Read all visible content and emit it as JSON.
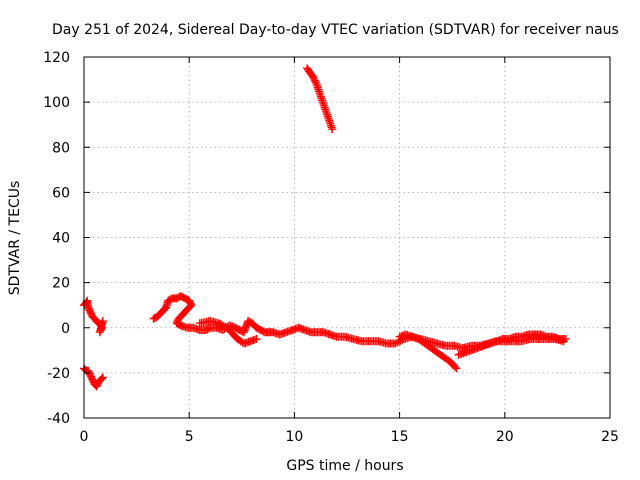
{
  "chart_data": {
    "type": "scatter",
    "title": "Day 251 of 2024, Sidereal Day-to-day VTEC variation (SDTVAR) for receiver naus",
    "xlabel": "GPS time / hours",
    "ylabel": "SDTVAR / TECUs",
    "xlim": [
      0,
      25
    ],
    "ylim": [
      -40,
      120
    ],
    "xticks": [
      0,
      5,
      10,
      15,
      20,
      25
    ],
    "yticks": [
      -40,
      -20,
      0,
      20,
      40,
      60,
      80,
      100,
      120
    ],
    "grid": true,
    "legend": "none",
    "marker": "plus",
    "series": [
      {
        "name": "arc-a",
        "color": "#ff0000",
        "x": [
          0.0,
          0.1,
          0.15,
          0.2,
          0.3,
          0.4,
          0.5,
          0.6,
          0.7,
          0.8,
          0.9,
          0.75,
          0.85
        ],
        "y": [
          10,
          11,
          12,
          9,
          7,
          5,
          4,
          3,
          2,
          1,
          3,
          -2,
          0
        ]
      },
      {
        "name": "arc-b",
        "color": "#ff0000",
        "x": [
          0.0,
          0.1,
          0.2,
          0.3,
          0.4,
          0.5,
          0.6,
          0.7,
          0.8,
          0.9
        ],
        "y": [
          -18,
          -19,
          -19,
          -21,
          -23,
          -25,
          -26,
          -24,
          -23,
          -22
        ]
      },
      {
        "name": "arc-c",
        "color": "#ff0000",
        "x": [
          3.3,
          3.5,
          3.7,
          3.9,
          4.0,
          4.2,
          4.4,
          4.6,
          4.8,
          5.0,
          5.1,
          4.9,
          4.7,
          4.5,
          4.4,
          4.6,
          4.9,
          5.2,
          5.5,
          5.8,
          6.0,
          6.3,
          6.6,
          6.9,
          7.2,
          7.4,
          7.6,
          7.8,
          8.0,
          8.2,
          8.4,
          8.6,
          8.8,
          9.0,
          9.3,
          9.6,
          9.9,
          10.2,
          10.5,
          10.8,
          11.1,
          11.4,
          11.7,
          12.0,
          12.4,
          12.8,
          13.2,
          13.6,
          14.0,
          14.4,
          14.8,
          15.2,
          15.6,
          16.0,
          16.4,
          16.8,
          17.2,
          17.6,
          18.0,
          18.4,
          18.8,
          19.2,
          19.6,
          20.0,
          20.4,
          20.8,
          21.2,
          21.6,
          22.0,
          22.4,
          22.8
        ],
        "y": [
          4,
          5,
          7,
          9,
          12,
          13,
          13,
          14,
          13,
          12,
          10,
          8,
          6,
          4,
          2,
          1,
          0,
          0,
          -1,
          -1,
          0,
          0,
          -1,
          1,
          0,
          -1,
          -2,
          3,
          2,
          0,
          -1,
          -2,
          -2,
          -2,
          -3,
          -2,
          -1,
          0,
          -1,
          -2,
          -2,
          -2,
          -3,
          -4,
          -4,
          -5,
          -6,
          -6,
          -6,
          -7,
          -7,
          -5,
          -4,
          -5,
          -6,
          -7,
          -8,
          -8,
          -9,
          -8,
          -8,
          -7,
          -6,
          -6,
          -6,
          -6,
          -5,
          -5,
          -5,
          -5,
          -6
        ]
      },
      {
        "name": "arc-d",
        "color": "#ff0000",
        "x": [
          5.5,
          6.0,
          6.4,
          6.8,
          7.0,
          7.3,
          7.6,
          7.9,
          8.2
        ],
        "y": [
          2,
          3,
          2,
          0,
          -2,
          -5,
          -7,
          -6,
          -5
        ]
      },
      {
        "name": "arc-e",
        "color": "#ff0000",
        "x": [
          15.0,
          15.3,
          15.6,
          15.9,
          16.2,
          16.5,
          16.8,
          17.1,
          17.4,
          17.7
        ],
        "y": [
          -4,
          -3,
          -4,
          -5,
          -7,
          -9,
          -11,
          -13,
          -15,
          -18
        ]
      },
      {
        "name": "arc-f",
        "color": "#ff0000",
        "x": [
          17.8,
          18.1,
          18.4,
          18.7,
          19.0,
          19.3,
          19.6,
          19.9,
          20.2,
          20.5,
          20.8,
          21.1,
          21.4,
          21.7,
          22.0,
          22.3,
          22.6,
          22.9
        ],
        "y": [
          -12,
          -11,
          -10,
          -9,
          -8,
          -7,
          -6,
          -5,
          -5,
          -4,
          -4,
          -3,
          -3,
          -3,
          -4,
          -4,
          -5,
          -5
        ]
      },
      {
        "name": "arc-g",
        "color": "#ff0000",
        "x": [
          10.6,
          10.75,
          10.9,
          11.05,
          11.2,
          11.35,
          11.5,
          11.65,
          11.8
        ],
        "y": [
          115,
          113,
          111,
          108,
          104,
          100,
          96,
          92,
          88
        ]
      }
    ]
  }
}
